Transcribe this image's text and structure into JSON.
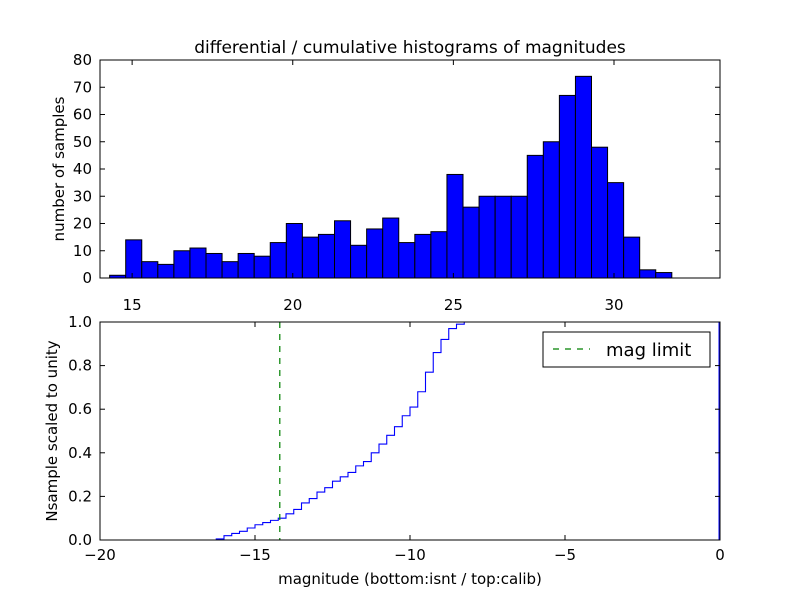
{
  "chart_data": [
    {
      "type": "bar",
      "title": "differential / cumulative histograms of magnitudes",
      "xlabel": "",
      "ylabel": "number of samples",
      "xlim": [
        14.0,
        33.3
      ],
      "ylim": [
        0,
        80
      ],
      "xticks": [
        "15",
        "20",
        "25",
        "30"
      ],
      "xtick_values": [
        15,
        20,
        25,
        30
      ],
      "yticks": [
        "0",
        "10",
        "20",
        "30",
        "40",
        "50",
        "60",
        "70",
        "80"
      ],
      "ytick_values": [
        0,
        10,
        20,
        30,
        40,
        50,
        60,
        70,
        80
      ],
      "bin_start": 14.3,
      "bin_width": 0.5,
      "values": [
        1,
        14,
        6,
        5,
        10,
        11,
        9,
        6,
        9,
        8,
        13,
        20,
        15,
        16,
        21,
        12,
        18,
        22,
        13,
        16,
        17,
        38,
        26,
        30,
        30,
        30,
        45,
        50,
        67,
        74,
        48,
        35,
        15,
        3,
        2
      ],
      "color": "#0000ff",
      "edgecolor": "#000000"
    },
    {
      "type": "line",
      "title": "",
      "xlabel": "magnitude (bottom:isnt / top:calib)",
      "ylabel": "Nsample scaled to unity",
      "xlim": [
        -20,
        0
      ],
      "ylim": [
        0,
        1.0
      ],
      "xticks": [
        "−20",
        "−15",
        "−10",
        "−5",
        "0"
      ],
      "xtick_values": [
        -20,
        -15,
        -10,
        -5,
        0
      ],
      "yticks": [
        "0.0",
        "0.2",
        "0.4",
        "0.6",
        "0.8",
        "1.0"
      ],
      "ytick_values": [
        0,
        0.2,
        0.4,
        0.6,
        0.8,
        1.0
      ],
      "series": [
        {
          "name": "cumulative",
          "color": "#0000ff",
          "style": "steps",
          "x": [
            -20.0,
            -16.25,
            -16.0,
            -15.75,
            -15.5,
            -15.25,
            -15.0,
            -14.75,
            -14.5,
            -14.25,
            -14.0,
            -13.75,
            -13.5,
            -13.25,
            -13.0,
            -12.75,
            -12.5,
            -12.25,
            -12.0,
            -11.75,
            -11.5,
            -11.25,
            -11.0,
            -10.75,
            -10.5,
            -10.25,
            -10.0,
            -9.75,
            -9.5,
            -9.25,
            -9.0,
            -8.75,
            -8.5,
            -8.25,
            -8.0
          ],
          "y": [
            0.0,
            0.005,
            0.02,
            0.03,
            0.04,
            0.055,
            0.07,
            0.08,
            0.09,
            0.1,
            0.12,
            0.14,
            0.17,
            0.19,
            0.22,
            0.24,
            0.27,
            0.29,
            0.31,
            0.34,
            0.36,
            0.4,
            0.44,
            0.48,
            0.52,
            0.57,
            0.61,
            0.68,
            0.77,
            0.86,
            0.92,
            0.97,
            0.99,
            1.0,
            1.0
          ]
        },
        {
          "name": "mag limit",
          "color": "#008000",
          "style": "dashed",
          "vline_x": -14.2
        }
      ],
      "legend": {
        "entries": [
          "mag limit"
        ],
        "placement": "top-right"
      }
    }
  ]
}
